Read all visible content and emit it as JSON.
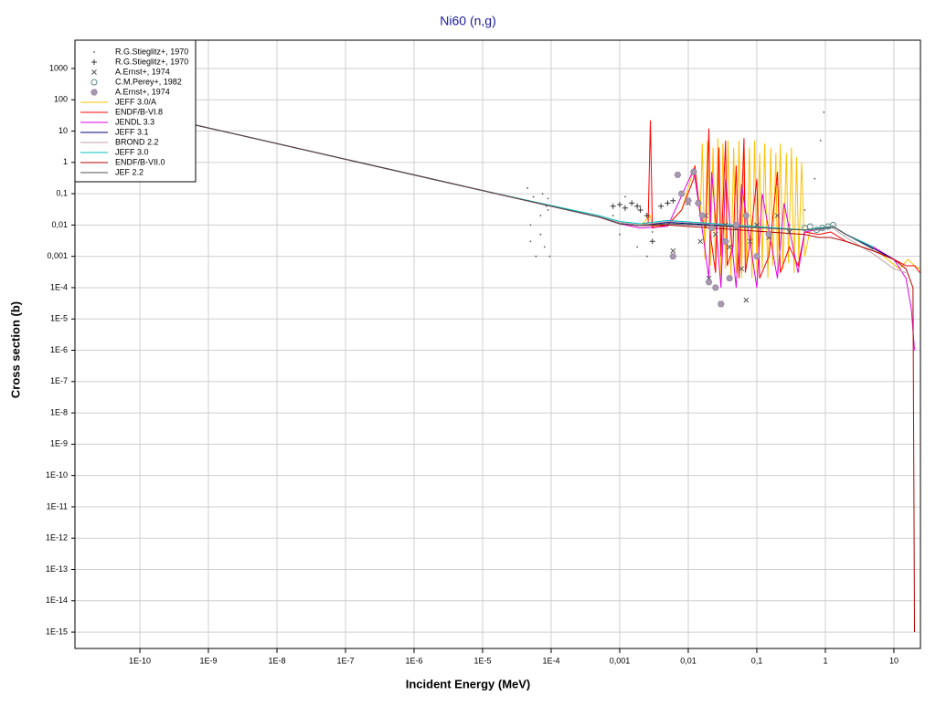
{
  "chart_data": {
    "type": "line",
    "title": "Ni60 (n,g)",
    "x_label": "Incident Energy (MeV)",
    "y_label": "Cross section (b)",
    "log_x": true,
    "log_y": true,
    "grid": true,
    "legend": "upper left",
    "xlim": [
      1.13e-11,
      24.4
    ],
    "ylim": [
      3e-16,
      8000
    ],
    "xticks": [
      {
        "value": 1e-10,
        "label": "1E-10"
      },
      {
        "value": 1e-09,
        "label": "1E-9"
      },
      {
        "value": 1e-08,
        "label": "1E-8"
      },
      {
        "value": 1e-07,
        "label": "1E-7"
      },
      {
        "value": 1e-06,
        "label": "1E-6"
      },
      {
        "value": 1e-05,
        "label": "1E-5"
      },
      {
        "value": 0.0001,
        "label": "1E-4"
      },
      {
        "value": 0.001,
        "label": "0,001"
      },
      {
        "value": 0.01,
        "label": "0,01"
      },
      {
        "value": 0.1,
        "label": "0,1"
      },
      1,
      10
    ],
    "yticks": [
      {
        "value": 1e-15,
        "label": "1E-15"
      },
      {
        "value": 1e-14,
        "label": "1E-14"
      },
      {
        "value": 1e-13,
        "label": "1E-13"
      },
      {
        "value": 1e-12,
        "label": "1E-12"
      },
      {
        "value": 1e-11,
        "label": "1E-11"
      },
      {
        "value": 1e-10,
        "label": "1E-10"
      },
      {
        "value": 1e-09,
        "label": "1E-9"
      },
      {
        "value": 1e-08,
        "label": "1E-8"
      },
      {
        "value": 1e-07,
        "label": "1E-7"
      },
      {
        "value": 1e-06,
        "label": "1E-6"
      },
      {
        "value": 1e-05,
        "label": "1E-5"
      },
      {
        "value": 0.0001,
        "label": "1E-4"
      },
      {
        "value": 0.001,
        "label": "0,001"
      },
      {
        "value": 0.01,
        "label": "0,01"
      },
      {
        "value": 0.1,
        "label": "0,1"
      },
      1,
      10,
      100,
      1000
    ],
    "series": [
      {
        "name": "R.G.Stieglitz+, 1970",
        "color": "#555555",
        "marker": "dot",
        "x": [
          4.5e-05,
          5e-05,
          5.5e-05,
          6e-05,
          6.5e-05,
          7e-05,
          7.5e-05,
          8e-05,
          8.5e-05,
          9e-05,
          9.5e-05,
          5e-05,
          7e-05,
          9e-05,
          0.0008,
          0.001,
          0.0012,
          0.0015,
          0.0018,
          0.002,
          0.0025,
          0.003,
          0.2,
          0.3,
          0.5,
          0.7,
          0.85,
          0.95
        ],
        "values": [
          0.15,
          0.003,
          0.08,
          0.001,
          0.05,
          0.02,
          0.1,
          0.002,
          0.04,
          0.07,
          0.001,
          0.01,
          0.005,
          0.03,
          0.02,
          0.005,
          0.08,
          0.01,
          0.002,
          0.04,
          0.001,
          0.006,
          0.2,
          0.01,
          0.03,
          0.3,
          5,
          40
        ]
      },
      {
        "name": "R.G.Stieglitz+, 1970",
        "color": "#333333",
        "marker": "plus",
        "x": [
          0.0008,
          0.001,
          0.0012,
          0.0015,
          0.0018,
          0.002,
          0.0025,
          0.003,
          0.004,
          0.005,
          0.006,
          0.008
        ],
        "values": [
          0.04,
          0.045,
          0.035,
          0.05,
          0.04,
          0.03,
          0.02,
          0.003,
          0.04,
          0.05,
          0.06,
          0.1
        ]
      },
      {
        "name": "A.Ernst+, 1974",
        "color": "#555555",
        "marker": "x",
        "x": [
          0.006,
          0.01,
          0.015,
          0.018,
          0.02,
          0.025,
          0.03,
          0.035,
          0.04,
          0.05,
          0.06,
          0.07,
          0.08,
          0.1,
          0.15,
          0.2,
          0.3
        ],
        "values": [
          0.0015,
          0.05,
          0.003,
          0.02,
          0.0002,
          0.005,
          3e-05,
          0.01,
          0.002,
          0.008,
          0.0004,
          4e-05,
          0.003,
          0.01,
          0.004,
          0.02,
          0.006
        ]
      },
      {
        "name": "C.M.Perey+, 1982",
        "color": "#5a8a8a",
        "marker": "circle",
        "x": [
          0.5,
          0.6,
          0.75,
          0.9,
          1.1,
          1.3
        ],
        "values": [
          0.008,
          0.009,
          0.007,
          0.008,
          0.009,
          0.01
        ]
      },
      {
        "name": "A.Ernst+, 1974",
        "color": "#a898b0",
        "marker": "hexagon",
        "x": [
          0.006,
          0.007,
          0.008,
          0.01,
          0.012,
          0.014,
          0.016,
          0.02,
          0.022,
          0.025,
          0.03,
          0.035,
          0.04,
          0.05,
          0.07,
          0.1,
          0.15
        ],
        "values": [
          0.001,
          0.4,
          0.1,
          0.06,
          0.5,
          0.05,
          0.02,
          0.00015,
          0.008,
          0.0001,
          3e-05,
          0.003,
          0.0002,
          0.01,
          0.02,
          0.001,
          0.005
        ]
      },
      {
        "name": "JEFF 3.0/A",
        "color": "#ffc000",
        "x": [
          1.13e-11,
          1e-09,
          1e-07,
          1e-05,
          0.0001,
          0.0005,
          0.001,
          0.002,
          0.0028,
          0.003,
          0.005,
          0.008,
          0.0125,
          0.015,
          0.016,
          0.0175,
          0.019,
          0.021,
          0.023,
          0.025,
          0.027,
          0.03,
          0.032,
          0.035,
          0.038,
          0.042,
          0.046,
          0.05,
          0.055,
          0.06,
          0.065,
          0.071,
          0.078,
          0.085,
          0.093,
          0.1,
          0.11,
          0.12,
          0.13,
          0.145,
          0.16,
          0.17,
          0.19,
          0.2,
          0.22,
          0.24,
          0.27,
          0.29,
          0.32,
          0.35,
          0.38,
          0.41,
          0.45,
          0.5,
          0.6,
          1,
          1.3,
          2,
          5,
          8,
          12,
          16,
          20,
          24
        ],
        "values": [
          118,
          12.6,
          1.26,
          0.126,
          0.04,
          0.018,
          0.011,
          0.0095,
          0.02,
          0.009,
          0.01,
          0.03,
          0.8,
          0.02,
          4,
          0.0008,
          5,
          0.0005,
          3,
          0.0003,
          6,
          0.0002,
          4,
          0.0004,
          5,
          0.0002,
          3,
          0.0003,
          5,
          0.0002,
          4,
          0.0005,
          3,
          0.0002,
          5,
          0.0003,
          2,
          0.0004,
          4,
          0.0002,
          3,
          0.0005,
          2,
          0.0003,
          4,
          0.0004,
          2,
          0.0006,
          3,
          0.0003,
          1.5,
          0.0008,
          1,
          0.001,
          0.007,
          0.008,
          0.009,
          0.005,
          0.002,
          0.0008,
          0.0004,
          0.0008,
          0.0005,
          0.0004
        ]
      },
      {
        "name": "ENDF/B-VI.8",
        "color": "#ff0000",
        "x": [
          1.13e-11,
          1e-09,
          1e-07,
          1e-05,
          0.0001,
          0.0005,
          0.001,
          0.002,
          0.0026,
          0.0028,
          0.003,
          0.005,
          0.008,
          0.012,
          0.0125,
          0.013,
          0.015,
          0.018,
          0.02,
          0.021,
          0.025,
          0.028,
          0.03,
          0.035,
          0.037,
          0.045,
          0.05,
          0.055,
          0.065,
          0.068,
          0.08,
          0.1,
          0.11,
          0.15,
          0.2,
          0.22,
          0.3,
          0.4,
          0.5,
          0.8,
          1.2,
          2,
          5,
          10,
          15,
          20,
          24
        ],
        "values": [
          118,
          12.6,
          1.26,
          0.126,
          0.04,
          0.018,
          0.011,
          0.0095,
          0.012,
          22,
          0.008,
          0.01,
          0.03,
          0.3,
          0.8,
          0.3,
          0.02,
          0.008,
          12,
          0.005,
          0.0003,
          3,
          0.001,
          5,
          0.0005,
          0.002,
          0.8,
          0.0002,
          6,
          0.0003,
          0.003,
          0.3,
          0.0002,
          0.001,
          0.5,
          0.0003,
          0.002,
          0.0005,
          0.006,
          0.005,
          0.006,
          0.003,
          0.0015,
          0.0008,
          0.0005,
          0.0005,
          0.0003
        ]
      },
      {
        "name": "JENDL 3.3",
        "color": "#e000e0",
        "x": [
          1.13e-11,
          1e-09,
          1e-07,
          1e-05,
          0.0001,
          0.0005,
          0.001,
          0.002,
          0.005,
          0.012,
          0.015,
          0.02,
          0.022,
          0.03,
          0.035,
          0.05,
          0.06,
          0.1,
          0.12,
          0.2,
          0.25,
          0.4,
          0.5,
          1,
          1.3,
          2,
          5,
          10,
          15,
          18,
          20
        ],
        "values": [
          118,
          12.6,
          1.26,
          0.126,
          0.04,
          0.018,
          0.011,
          0.008,
          0.009,
          0.6,
          0.02,
          0.0002,
          0.5,
          0.0001,
          0.3,
          0.0001,
          0.2,
          0.0001,
          0.1,
          0.0002,
          0.05,
          0.0003,
          0.006,
          0.008,
          0.009,
          0.005,
          0.002,
          0.0008,
          0.0002,
          2e-05,
          1e-06
        ]
      },
      {
        "name": "JEFF 3.1",
        "color": "#000080",
        "x": [
          1.13e-11,
          1e-09,
          1e-07,
          1e-05,
          0.0001,
          0.0005,
          0.001,
          0.002,
          0.005,
          0.5,
          0.8,
          1.3,
          2,
          5,
          10
        ],
        "values": [
          118,
          12.6,
          1.26,
          0.126,
          0.04,
          0.018,
          0.011,
          0.0097,
          0.012,
          0.007,
          0.007,
          0.009,
          0.005,
          0.0018,
          0.0008
        ]
      },
      {
        "name": "BROND 2.2",
        "color": "#c0a0a8",
        "x": [
          1.13e-11,
          1e-09,
          1e-07,
          1e-05,
          0.0001,
          0.0005,
          0.001,
          0.002,
          0.005,
          0.5,
          0.8,
          1.3,
          2,
          5,
          10,
          15
        ],
        "values": [
          118,
          12.6,
          1.26,
          0.126,
          0.04,
          0.019,
          0.012,
          0.01,
          0.013,
          0.007,
          0.007,
          0.008,
          0.004,
          0.0012,
          0.0004,
          0.0003
        ]
      },
      {
        "name": "JEFF 3.0",
        "color": "#00c0c0",
        "x": [
          1.13e-11,
          1e-09,
          1e-07,
          1e-05,
          0.0001,
          0.0005,
          0.001,
          0.002,
          0.005,
          0.5,
          0.8,
          1.3,
          2,
          5
        ],
        "values": [
          118,
          12.6,
          1.26,
          0.126,
          0.042,
          0.02,
          0.013,
          0.011,
          0.014,
          0.007,
          0.008,
          0.009,
          0.005,
          0.002
        ]
      },
      {
        "name": "ENDF/B-VII.0",
        "color": "#b00000",
        "x": [
          1.13e-11,
          1e-09,
          1e-07,
          1e-05,
          0.0001,
          0.0005,
          0.001,
          0.002,
          0.005,
          0.5,
          0.8,
          1.2,
          2,
          5,
          10,
          15,
          19,
          20
        ],
        "values": [
          118,
          12.6,
          1.26,
          0.126,
          0.04,
          0.018,
          0.011,
          0.0095,
          0.01,
          0.005,
          0.004,
          0.004,
          0.003,
          0.0015,
          0.0008,
          0.0004,
          0.0001,
          1e-15
        ]
      },
      {
        "name": "JEF 2.2",
        "color": "#505050",
        "x": [
          1.13e-11,
          1e-09,
          1e-07,
          1e-05,
          0.0001,
          0.0005,
          0.001,
          0.002,
          0.005,
          0.5,
          0.8,
          1.3,
          2,
          5
        ],
        "values": [
          118,
          12.6,
          1.26,
          0.126,
          0.04,
          0.018,
          0.011,
          0.0096,
          0.011,
          0.007,
          0.0075,
          0.009,
          0.005,
          0.0017
        ]
      }
    ]
  }
}
